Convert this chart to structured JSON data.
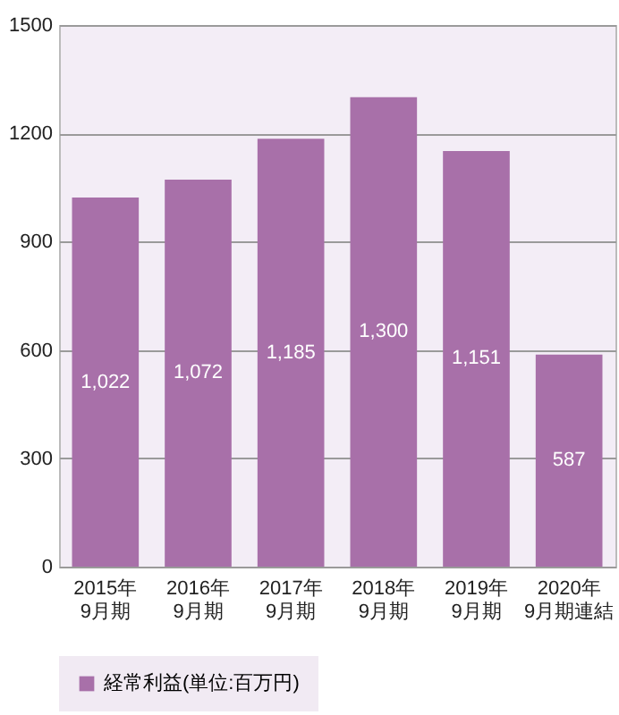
{
  "chart_data": {
    "type": "bar",
    "categories": [
      "2015年\n9月期",
      "2016年\n9月期",
      "2017年\n9月期",
      "2018年\n9月期",
      "2019年\n9月期",
      "2020年\n9月期連結"
    ],
    "series": [
      {
        "name": "経常利益(単位:百万円)",
        "color": "#a870a9",
        "values": [
          1022,
          1072,
          1185,
          1300,
          1151,
          587
        ],
        "value_labels": [
          "1,022",
          "1,072",
          "1,185",
          "1,300",
          "1,151",
          "587"
        ]
      }
    ],
    "ylim": [
      0,
      1500
    ],
    "yticks": [
      0,
      300,
      600,
      900,
      1200,
      1500
    ],
    "grid": "y",
    "legend": "bottom"
  }
}
